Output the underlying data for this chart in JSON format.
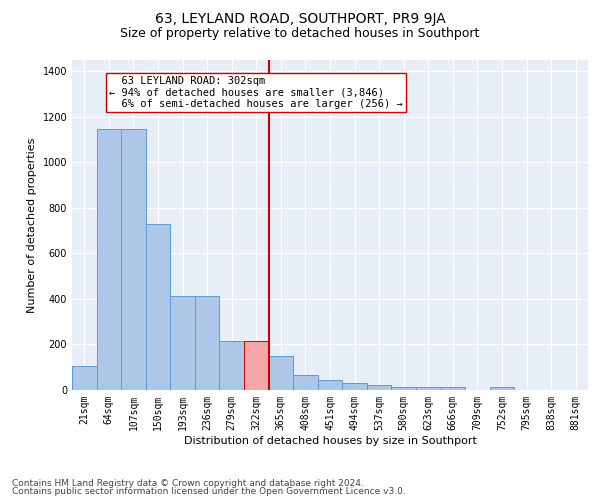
{
  "title": "63, LEYLAND ROAD, SOUTHPORT, PR9 9JA",
  "subtitle": "Size of property relative to detached houses in Southport",
  "xlabel": "Distribution of detached houses by size in Southport",
  "ylabel": "Number of detached properties",
  "categories": [
    "21sqm",
    "64sqm",
    "107sqm",
    "150sqm",
    "193sqm",
    "236sqm",
    "279sqm",
    "322sqm",
    "365sqm",
    "408sqm",
    "451sqm",
    "494sqm",
    "537sqm",
    "580sqm",
    "623sqm",
    "666sqm",
    "709sqm",
    "752sqm",
    "795sqm",
    "838sqm",
    "881sqm"
  ],
  "values": [
    105,
    1145,
    1145,
    730,
    415,
    415,
    215,
    215,
    150,
    65,
    45,
    30,
    20,
    15,
    12,
    12,
    0,
    12,
    0,
    0,
    0
  ],
  "bar_color": "#aec6e8",
  "bar_edge_color": "#5b9bd5",
  "highlight_bar_index": 7,
  "highlight_bar_color": "#f4a7a7",
  "highlight_bar_edge_color": "#cc0000",
  "vline_x": 7.5,
  "vline_color": "#cc0000",
  "annotation_text": "  63 LEYLAND ROAD: 302sqm\n← 94% of detached houses are smaller (3,846)\n  6% of semi-detached houses are larger (256) →",
  "annotation_box_color": "#ffffff",
  "annotation_box_edge_color": "#cc0000",
  "ylim": [
    0,
    1450
  ],
  "yticks": [
    0,
    200,
    400,
    600,
    800,
    1000,
    1200,
    1400
  ],
  "bg_color": "#e8eef7",
  "footer_line1": "Contains HM Land Registry data © Crown copyright and database right 2024.",
  "footer_line2": "Contains public sector information licensed under the Open Government Licence v3.0.",
  "title_fontsize": 10,
  "subtitle_fontsize": 9,
  "label_fontsize": 8,
  "tick_fontsize": 7,
  "annotation_fontsize": 7.5,
  "footer_fontsize": 6.5
}
